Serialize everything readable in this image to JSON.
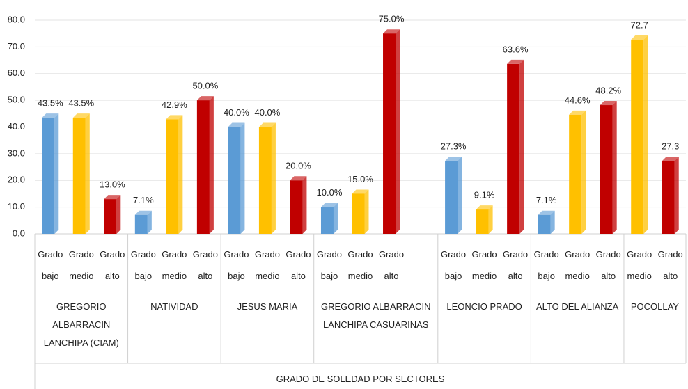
{
  "chart_data": {
    "type": "bar",
    "x_label": "GRADO DE SOLEDAD POR SECTORES",
    "ylim": [
      0,
      80
    ],
    "yticks": [
      {
        "value": 0,
        "label": "0.0"
      },
      {
        "value": 10,
        "label": "10.0"
      },
      {
        "value": 20,
        "label": "20.0"
      },
      {
        "value": 30,
        "label": "30.0"
      },
      {
        "value": 40,
        "label": "40.0"
      },
      {
        "value": 50,
        "label": "50.0"
      },
      {
        "value": 60,
        "label": "60.0"
      },
      {
        "value": 70,
        "label": "70.0"
      },
      {
        "value": 80,
        "label": "80.0"
      }
    ],
    "grid": true,
    "groups": [
      {
        "name": "GREGORIO ALBARRACIN LANCHIPA (CIAM)",
        "categories": [
          "Grado bajo",
          "Grado medio",
          "Grado alto"
        ],
        "values": [
          43.5,
          43.5,
          13.0
        ],
        "value_labels": [
          "43.5%",
          "43.5%",
          "13.0%"
        ],
        "colors": [
          "#5b9bd5",
          "#ffc000",
          "#c00000"
        ]
      },
      {
        "name": "NATIVIDAD",
        "categories": [
          "Grado bajo",
          "Grado medio",
          "Grado alto"
        ],
        "values": [
          7.1,
          42.9,
          50.0
        ],
        "value_labels": [
          "7.1%",
          "42.9%",
          "50.0%"
        ],
        "colors": [
          "#5b9bd5",
          "#ffc000",
          "#c00000"
        ]
      },
      {
        "name": "JESUS MARIA",
        "categories": [
          "Grado bajo",
          "Grado medio",
          "Grado alto"
        ],
        "values": [
          40.0,
          40.0,
          20.0
        ],
        "value_labels": [
          "40.0%",
          "40.0%",
          "20.0%"
        ],
        "colors": [
          "#5b9bd5",
          "#ffc000",
          "#c00000"
        ]
      },
      {
        "name": "GREGORIO ALBARRACIN LANCHIPA CASUARINAS",
        "categories": [
          "Grado bajo",
          "Grado medio",
          "Grado alto",
          null
        ],
        "values": [
          10.0,
          15.0,
          75.0,
          null
        ],
        "value_labels": [
          "10.0%",
          "15.0%",
          "75.0%",
          null
        ],
        "colors": [
          "#5b9bd5",
          "#ffc000",
          "#c00000",
          null
        ]
      },
      {
        "name": "LEONCIO PRADO",
        "categories": [
          "Grado bajo",
          "Grado medio",
          "Grado alto"
        ],
        "values": [
          27.3,
          9.1,
          63.6
        ],
        "value_labels": [
          "27.3%",
          "9.1%",
          "63.6%"
        ],
        "colors": [
          "#5b9bd5",
          "#ffc000",
          "#c00000"
        ]
      },
      {
        "name": "ALTO DEL ALIANZA",
        "categories": [
          "Grado bajo",
          "Grado medio",
          "Grado alto"
        ],
        "values": [
          7.1,
          44.6,
          48.2
        ],
        "value_labels": [
          "7.1%",
          "44.6%",
          "48.2%"
        ],
        "colors": [
          "#5b9bd5",
          "#ffc000",
          "#c00000"
        ]
      },
      {
        "name": "POCOLLAY",
        "categories": [
          "Grado medio",
          "Grado alto"
        ],
        "values": [
          72.7,
          27.3
        ],
        "colors": [
          "#ffc000",
          "#c00000"
        ]
      }
    ]
  }
}
